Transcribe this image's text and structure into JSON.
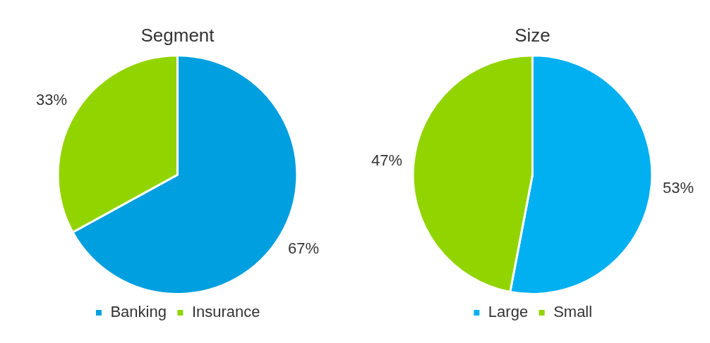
{
  "chart_data": [
    {
      "type": "pie",
      "title": "Segment",
      "categories": [
        "Banking",
        "Insurance"
      ],
      "values": [
        67,
        33
      ],
      "colors": [
        "#009fdf",
        "#92d400"
      ],
      "value_labels": [
        "67%",
        "33%"
      ],
      "legend": "bottom"
    },
    {
      "type": "pie",
      "title": "Size",
      "categories": [
        "Large",
        "Small"
      ],
      "values": [
        53,
        47
      ],
      "colors": [
        "#00b0f0",
        "#92d400"
      ],
      "value_labels": [
        "53%",
        "47%"
      ],
      "legend": "bottom"
    }
  ]
}
